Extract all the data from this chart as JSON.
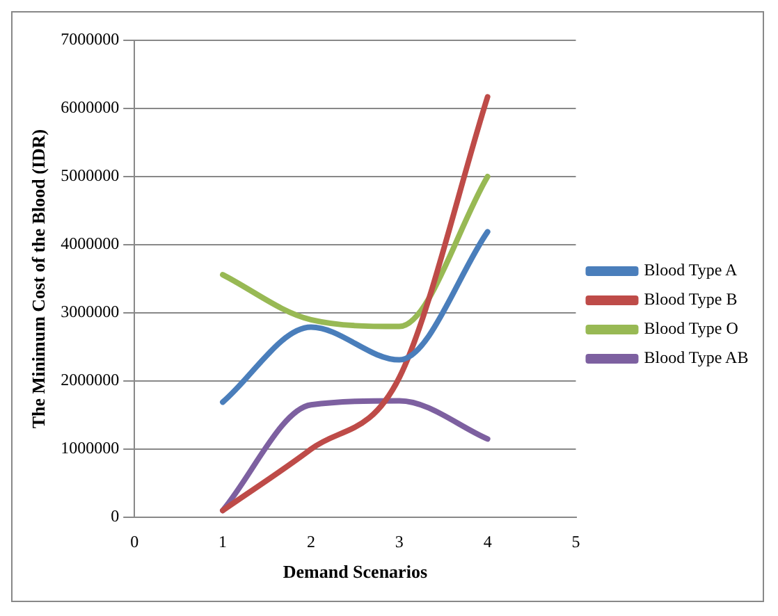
{
  "chart_data": {
    "type": "line",
    "xlabel": "Demand Scenarios",
    "ylabel": "The Minimum Cost of the Blood (IDR)",
    "x": [
      1,
      2,
      3,
      4
    ],
    "series": [
      {
        "name": "Blood Type A",
        "color": "#4a7ebb",
        "values": [
          1690000,
          2790000,
          2310000,
          4190000
        ]
      },
      {
        "name": "Blood Type B",
        "color": "#be4b48",
        "values": [
          100000,
          1000000,
          2050000,
          6170000
        ]
      },
      {
        "name": "Blood Type O",
        "color": "#98b954",
        "values": [
          3560000,
          2900000,
          2800000,
          5000000
        ]
      },
      {
        "name": "Blood Type AB",
        "color": "#7d60a0",
        "values": [
          100000,
          1650000,
          1710000,
          1150000
        ]
      }
    ],
    "xlim": [
      0,
      5
    ],
    "xticks": [
      0,
      1,
      2,
      3,
      4,
      5
    ],
    "ylim": [
      0,
      7000000
    ],
    "yticks": [
      0,
      1000000,
      2000000,
      3000000,
      4000000,
      5000000,
      6000000,
      7000000
    ],
    "grid": "y",
    "legend": "right",
    "marker": "none",
    "line_style": "solid"
  }
}
